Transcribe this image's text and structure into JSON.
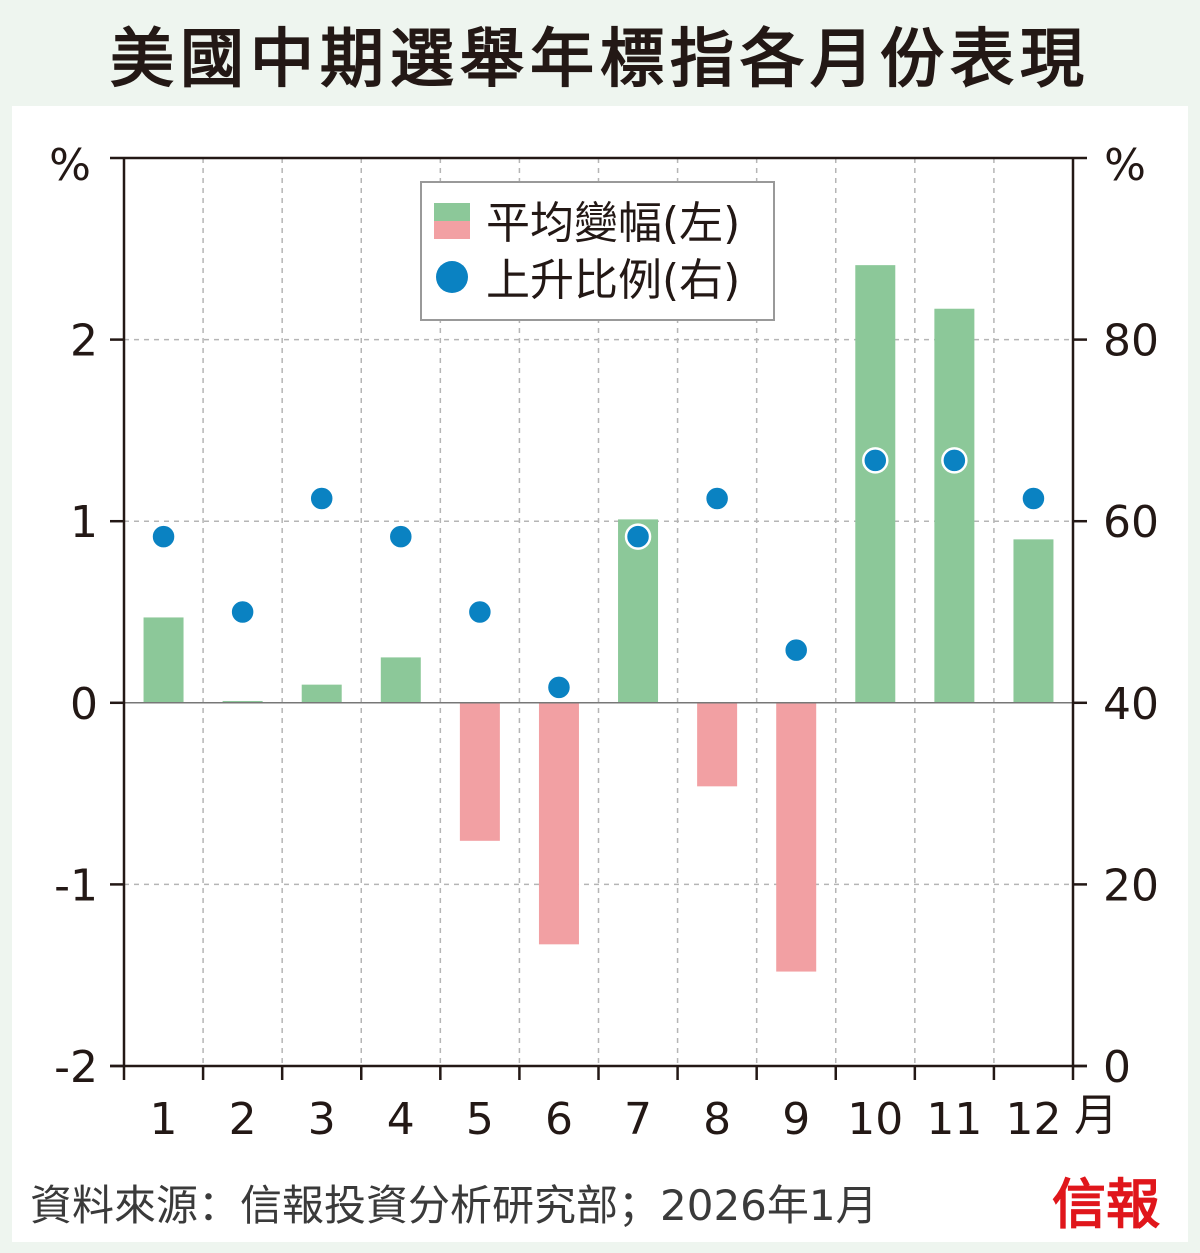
{
  "title": "美國中期選舉年標指各月份表現",
  "source": "資料來源：信報投資分析研究部；2026年1月",
  "logo": "信報",
  "chart_data": {
    "type": "bar",
    "title": "美國中期選舉年標指各月份表現",
    "categories": [
      "1",
      "2",
      "3",
      "4",
      "5",
      "6",
      "7",
      "8",
      "9",
      "10",
      "11",
      "12"
    ],
    "x_unit": "月",
    "left_axis": {
      "label": "%",
      "ylim": [
        -2,
        3
      ],
      "ticks": [
        "-2",
        "-1",
        "0",
        "1",
        "2"
      ]
    },
    "right_axis": {
      "label": "%",
      "ylim": [
        0,
        100
      ],
      "ticks": [
        "0",
        "20",
        "40",
        "60",
        "80"
      ]
    },
    "grid": true,
    "legend_position": "top-center",
    "series": [
      {
        "name": "平均變幅(左)",
        "type": "bar",
        "axis": "left",
        "color_pos": "#8cc899",
        "color_neg": "#f2a0a3",
        "values": [
          0.47,
          0.01,
          0.1,
          0.25,
          -0.76,
          -1.33,
          1.01,
          -0.46,
          -1.48,
          2.41,
          2.17,
          0.9
        ]
      },
      {
        "name": "上升比例(右)",
        "type": "scatter",
        "axis": "right",
        "color": "#0a82c2",
        "values": [
          58.3,
          50.0,
          62.5,
          58.3,
          50.0,
          41.7,
          58.3,
          62.5,
          45.8,
          66.7,
          66.7,
          62.5
        ]
      }
    ]
  }
}
